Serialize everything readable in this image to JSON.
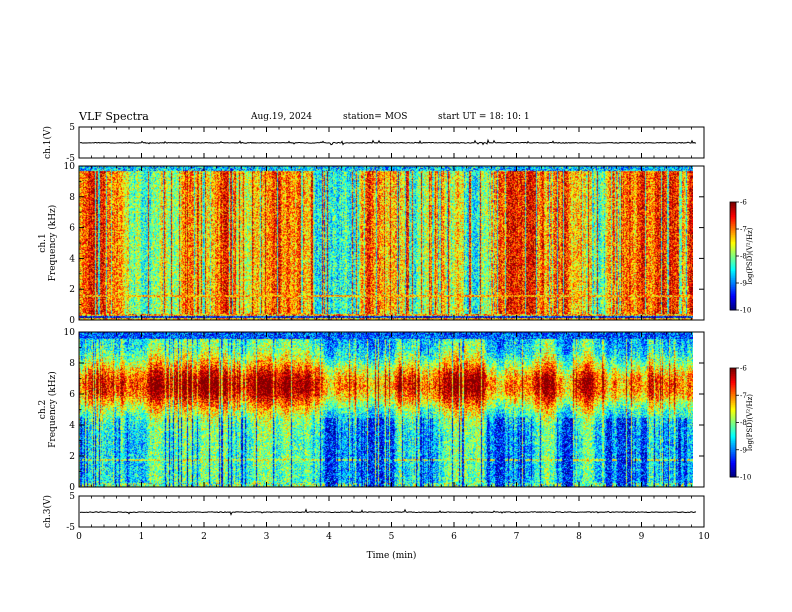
{
  "header": {
    "title": "VLF Spectra",
    "date": "Aug.19, 2024",
    "station": "station= MOS",
    "start": "start  UT =   18: 10: 1"
  },
  "chart_data": [
    {
      "type": "line",
      "name": "ch.1 waveform panel",
      "ylabel": "ch.1(V)",
      "ylim": [
        -5,
        5
      ],
      "yticks": [
        "5",
        "-5"
      ],
      "xlim": [
        0,
        10
      ],
      "baseline_level": -0.1
    },
    {
      "type": "heatmap",
      "name": "ch.1 spectrogram",
      "ylabel": "ch.1\nFrequency (kHz)",
      "ylim": [
        0,
        10
      ],
      "yticks": [
        "0",
        "2",
        "4",
        "6",
        "8",
        "10"
      ],
      "xlim": [
        0,
        10
      ],
      "data_end_min": 9.82,
      "colorbar": {
        "label": "log(PSD)(V²/Hz)",
        "range": [
          -10,
          -6
        ],
        "ticks": [
          "-6",
          "-7",
          "-8",
          "-9",
          "-10"
        ]
      }
    },
    {
      "type": "heatmap",
      "name": "ch.2 spectrogram",
      "ylabel": "ch.2\nFrequency (kHz)",
      "ylim": [
        0,
        10
      ],
      "yticks": [
        "0",
        "2",
        "4",
        "6",
        "8",
        "10"
      ],
      "xlim": [
        0,
        10
      ],
      "data_end_min": 9.82,
      "colorbar": {
        "label": "log(PSD)(V²/Hz)",
        "range": [
          -10,
          -6
        ],
        "ticks": [
          "-6",
          "-7",
          "-8",
          "-9",
          "-10"
        ]
      }
    },
    {
      "type": "line",
      "name": "ch.3 waveform panel",
      "ylabel": "ch.3(V)",
      "ylim": [
        -5,
        5
      ],
      "yticks": [
        "5",
        "-5"
      ],
      "xlim": [
        0,
        10
      ],
      "xlabel": "Time (min)",
      "xticks": [
        "0",
        "1",
        "2",
        "3",
        "4",
        "5",
        "6",
        "7",
        "8",
        "9",
        "10"
      ],
      "baseline_level": -0.2
    }
  ]
}
